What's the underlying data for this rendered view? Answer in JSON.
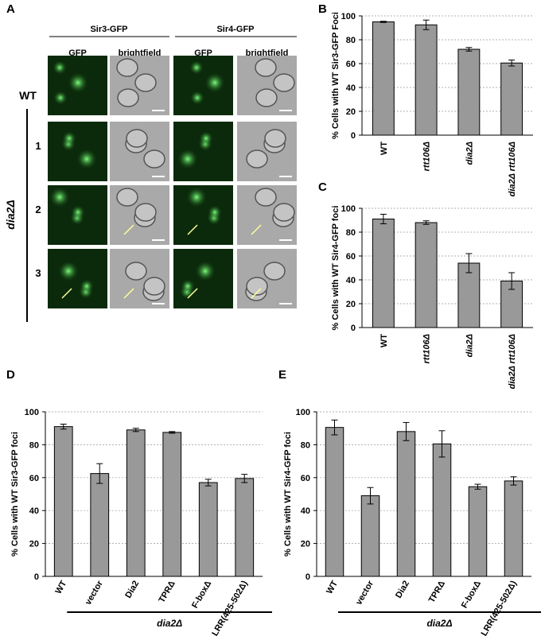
{
  "panel_a": {
    "label": "A",
    "constructs": [
      "Sir3-GFP",
      "Sir4-GFP"
    ],
    "channels": [
      "GFP",
      "brightfield",
      "GFP",
      "brightfield"
    ],
    "rows": [
      "WT",
      "1",
      "2",
      "3"
    ],
    "mutant": "dia2Δ"
  },
  "chart_data": [
    {
      "type": "bar",
      "panel": "B",
      "ylabel": "% Cells with WT Sir3-GFP Foci",
      "categories": [
        "WT",
        "rtt106Δ",
        "dia2Δ",
        "dia2Δ rtt106Δ"
      ],
      "values": [
        95,
        92.5,
        72,
        60.5
      ],
      "errors": [
        0.5,
        4,
        1.5,
        2.5
      ],
      "color": "#999999",
      "ylim": [
        0,
        100
      ],
      "yticks": [
        0,
        20,
        40,
        60,
        80,
        100
      ],
      "grid": true
    },
    {
      "type": "bar",
      "panel": "C",
      "ylabel": "% Cells with WT Sir4-GFP foci",
      "categories": [
        "WT",
        "rtt106Δ",
        "dia2Δ",
        "dia2Δ rtt106Δ"
      ],
      "values": [
        91,
        88,
        54,
        39
      ],
      "errors": [
        4,
        1.5,
        8,
        7
      ],
      "color": "#999999",
      "ylim": [
        0,
        100
      ],
      "yticks": [
        0,
        20,
        40,
        60,
        80,
        100
      ],
      "grid": true
    },
    {
      "type": "bar",
      "panel": "D",
      "ylabel": "% Cells with WT Sir3-GFP foci",
      "categories": [
        "WT",
        "vector",
        "Dia2",
        "TPRΔ",
        "F-boxΔ",
        "LRR(425-502Δ)"
      ],
      "values": [
        91,
        62.5,
        89,
        87.5,
        57,
        59.5
      ],
      "errors": [
        1.5,
        6,
        1,
        0.5,
        2,
        2.5
      ],
      "color": "#999999",
      "ylim": [
        0,
        100
      ],
      "yticks": [
        0,
        20,
        40,
        60,
        80,
        100
      ],
      "grid": true,
      "group_label": "dia2Δ"
    },
    {
      "type": "bar",
      "panel": "E",
      "ylabel": "% Cells with WT Sir4-GFP foci",
      "categories": [
        "WT",
        "vector",
        "Dia2",
        "TPRΔ",
        "F-boxΔ",
        "LRR(425-502Δ)"
      ],
      "values": [
        90.5,
        49,
        88,
        80.5,
        54.5,
        58
      ],
      "errors": [
        4.5,
        5,
        5.5,
        8,
        1.5,
        2.5
      ],
      "color": "#999999",
      "ylim": [
        0,
        100
      ],
      "yticks": [
        0,
        20,
        40,
        60,
        80,
        100
      ],
      "grid": true,
      "group_label": "dia2Δ"
    }
  ]
}
